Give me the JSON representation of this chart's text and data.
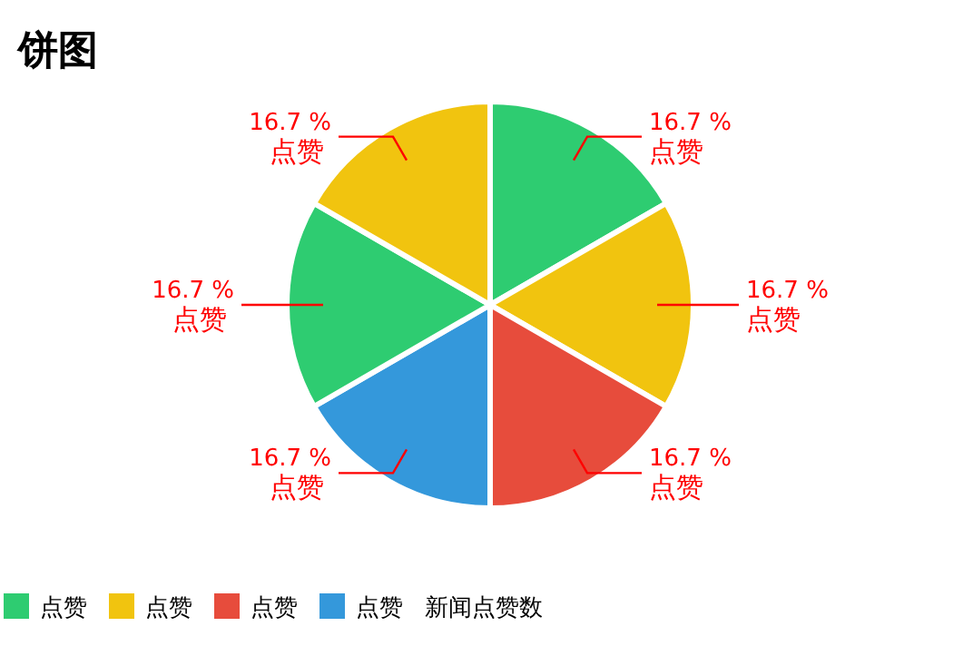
{
  "chart_data": {
    "type": "pie",
    "title": "饼图",
    "legend_title": "新闻点赞数",
    "categories": [
      "点赞",
      "点赞",
      "点赞",
      "点赞",
      "点赞",
      "点赞"
    ],
    "values": [
      16.7,
      16.7,
      16.7,
      16.7,
      16.7,
      16.7
    ],
    "colors": [
      "#2ecc71",
      "#f1c40f",
      "#e74c3c",
      "#3498db",
      "#2ecc71",
      "#f1c40f"
    ],
    "value_labels": [
      "16.7 %",
      "16.7 %",
      "16.7 %",
      "16.7 %",
      "16.7 %",
      "16.7 %"
    ],
    "legend": "bottom left"
  }
}
